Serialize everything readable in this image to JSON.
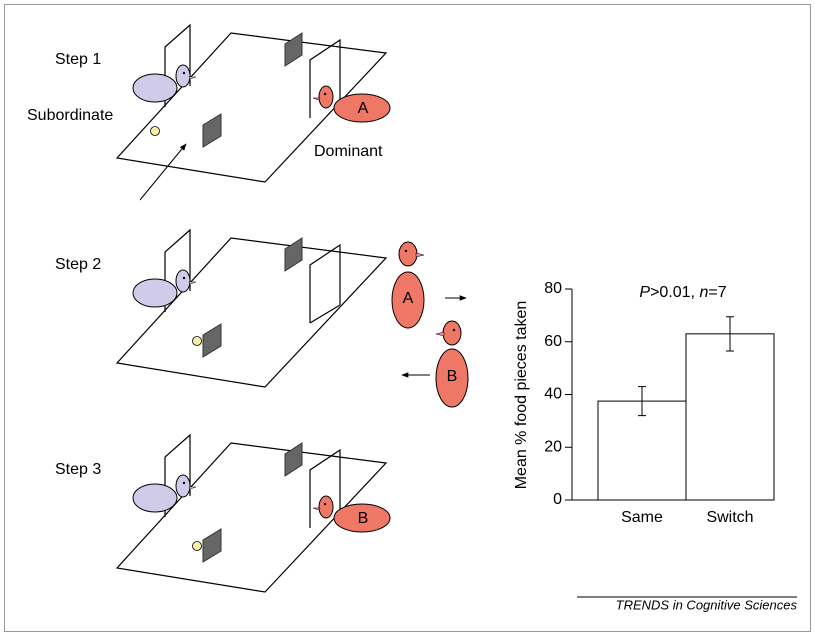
{
  "diagram": {
    "steps": [
      "Step 1",
      "Step 2",
      "Step 3"
    ],
    "subordinate": "Subordinate",
    "dominant": "Dominant",
    "bird_labels": [
      "A",
      "A",
      "B",
      "B"
    ]
  },
  "chart_data": {
    "type": "bar",
    "annotation": [
      "P",
      ">0.01, ",
      "n",
      "=7"
    ],
    "y_label": "Mean % food pieces taken",
    "categories": [
      "Same",
      "Switch"
    ],
    "values": [
      37.5,
      63
    ],
    "errors": [
      5.5,
      6.5
    ],
    "color": "#ffffff",
    "ylim": [
      0,
      80
    ],
    "yticks": [
      0,
      20,
      40,
      60,
      80
    ]
  },
  "source": "TRENDS in Cognitive Sciences"
}
